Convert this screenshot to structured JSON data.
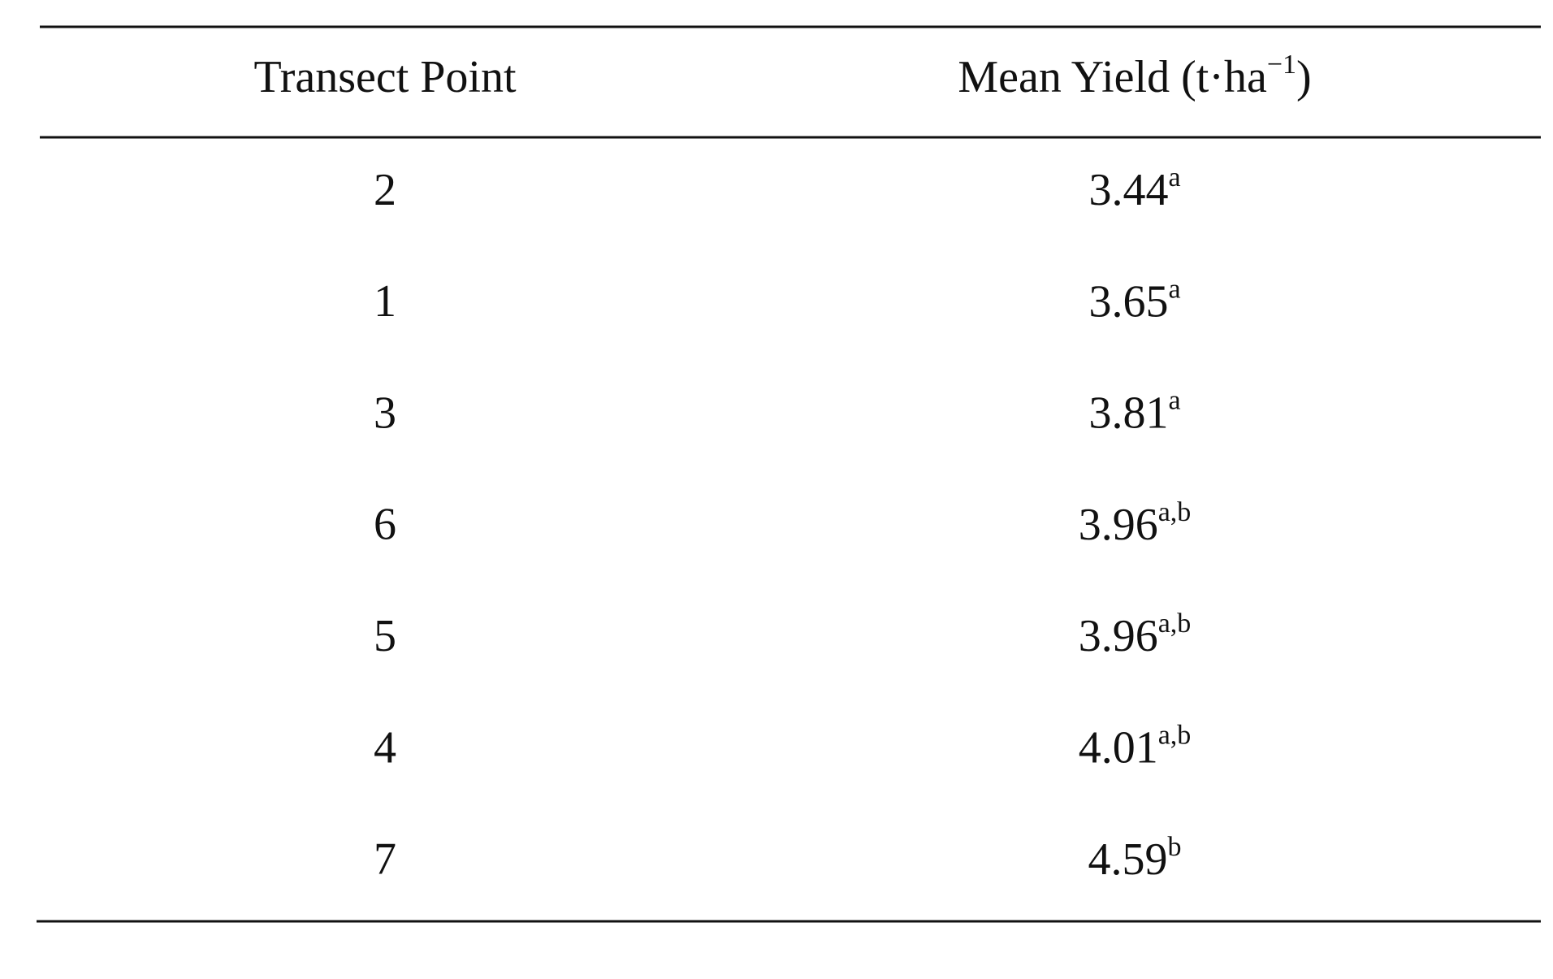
{
  "table": {
    "header": [
      {
        "text": "Transect Point"
      },
      {
        "text": "Mean Yield (t·ha",
        "sup": "−1",
        "after": ")"
      }
    ],
    "rows": [
      {
        "point": "2",
        "value": "3.44",
        "sup": "a"
      },
      {
        "point": "1",
        "value": "3.65",
        "sup": "a"
      },
      {
        "point": "3",
        "value": "3.81",
        "sup": "a"
      },
      {
        "point": "6",
        "value": "3.96",
        "sup": "a,b"
      },
      {
        "point": "5",
        "value": "3.96",
        "sup": "a,b"
      },
      {
        "point": "4",
        "value": "4.01",
        "sup": "a,b"
      },
      {
        "point": "7",
        "value": "4.59",
        "sup": "b"
      }
    ]
  }
}
